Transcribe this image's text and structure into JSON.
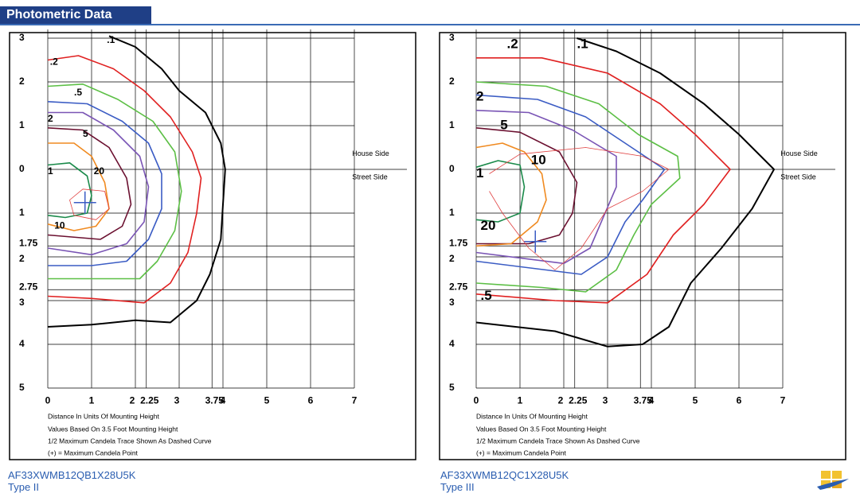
{
  "header": {
    "title": "Photometric Data"
  },
  "panels": [
    {
      "x_axis_labels": [
        "0",
        "1",
        "2",
        "2.25",
        "3",
        "3.75",
        "4",
        "5",
        "6",
        "7"
      ],
      "y_axis_labels": [
        "3",
        "2",
        "1",
        "0",
        "1",
        "1.75",
        "2",
        "2.75",
        "3",
        "4",
        "5"
      ],
      "side_labels": [
        "House Side",
        "Street Side"
      ],
      "contour_labels": [
        ".1",
        ".2",
        ".5",
        "2",
        "5",
        "1",
        "20",
        "10"
      ],
      "notes": [
        "Distance In Units Of Mounting Height",
        "Values Based On 3.5 Foot Mounting Height",
        "1/2 Maximum Candela Trace Shown As Dashed Curve",
        "(+) = Maximum Candela Point"
      ],
      "caption": [
        "AF33XWMB12QB1X28U5K",
        "Type II"
      ]
    },
    {
      "x_axis_labels": [
        "0",
        "1",
        "2",
        "2.25",
        "3",
        "3.75",
        "4",
        "5",
        "6",
        "7"
      ],
      "y_axis_labels": [
        "3",
        "2",
        "1",
        "0",
        "1",
        "1.75",
        "2",
        "2.75",
        "3",
        "4",
        "5"
      ],
      "side_labels": [
        "House Side",
        "Street Side"
      ],
      "contour_labels": [
        ".2",
        ".1",
        "2",
        "5",
        "10",
        "1",
        "20",
        ".5"
      ],
      "notes": [
        "Distance In Units Of Mounting Height",
        "Values Based On 3.5 Foot Mounting Height",
        "1/2 Maximum Candela Trace Shown As Dashed Curve",
        "(+) = Maximum Candela Point"
      ],
      "caption": [
        "AF33XWMB12QC1X28U5K",
        "Type III"
      ]
    }
  ]
}
